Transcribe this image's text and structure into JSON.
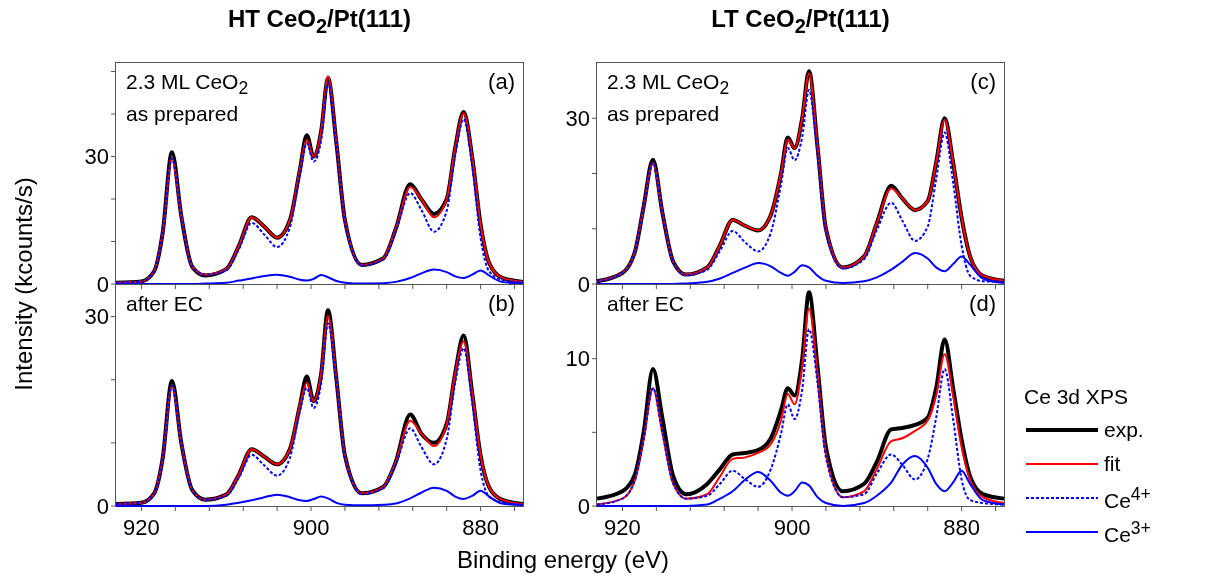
{
  "chart_data": [
    {
      "type": "line",
      "title": "HT CeO$_{2}$/Pt(111)",
      "ylabel": "Intensity (kcounts/s)",
      "annotations": [
        "2.3 ML CeO$_{2}$",
        "as prepared",
        "(a)"
      ],
      "marker": "none",
      "tick_labels": "y",
      "xlim": [
        923,
        875
      ],
      "xticks": [
        920,
        {
          "value": 916,
          "label": null
        },
        {
          "value": 912,
          "label": null
        },
        {
          "value": 908,
          "label": null
        },
        {
          "value": 904,
          "label": null
        },
        900,
        {
          "value": 896,
          "label": null
        },
        {
          "value": 892,
          "label": null
        },
        {
          "value": 888,
          "label": null
        },
        {
          "value": 884,
          "label": null
        },
        880,
        {
          "value": 876,
          "label": null
        }
      ],
      "ylim": [
        0,
        52
      ],
      "yticks": [
        0,
        {
          "value": 10,
          "label": null
        },
        {
          "value": 20,
          "label": null
        },
        30,
        {
          "value": 40,
          "label": null
        },
        {
          "value": 50,
          "label": null
        }
      ],
      "x": [
        923,
        920,
        918.5,
        917.5,
        916.4,
        915.3,
        914,
        912.5,
        910,
        908.5,
        907,
        905.5,
        904,
        902.5,
        901.3,
        900.5,
        899.7,
        898.8,
        898,
        897,
        896,
        894,
        891.5,
        890,
        888.3,
        887,
        885.5,
        884,
        883,
        882,
        881,
        880,
        879,
        877.5,
        875
      ],
      "series": [
        {
          "color": "#000000",
          "line_style": "solid",
          "values": [
            0.3,
            0.6,
            3,
            12,
            31,
            16,
            4,
            2.0,
            3.5,
            9,
            15.7,
            13.5,
            10.9,
            15,
            27,
            35,
            30,
            36,
            48.5,
            33,
            15,
            4.5,
            6,
            13,
            23.5,
            20,
            16.5,
            20,
            32,
            40.5,
            30,
            14,
            5,
            1.5,
            0.5
          ]
        },
        {
          "color": "#ff0000",
          "line_style": "solid",
          "values": [
            0.3,
            0.6,
            3,
            12,
            29.5,
            16,
            4,
            2.2,
            3.5,
            9,
            15.7,
            13.5,
            10.9,
            15,
            27,
            33.9,
            30,
            36,
            48.9,
            33,
            15,
            4.5,
            6,
            13,
            22.8,
            20,
            15.7,
            20,
            32,
            40.2,
            30,
            14,
            5,
            1.5,
            0.5
          ]
        },
        {
          "color": "#0000ff",
          "line_style": "dotted",
          "values": [
            0.3,
            0.6,
            3,
            12,
            29.5,
            16,
            4,
            2.2,
            3.2,
            8.2,
            14.4,
            11.6,
            8.7,
            13.3,
            26,
            33.1,
            28.8,
            33.9,
            47.3,
            32.3,
            14.7,
            4.4,
            5.8,
            12.5,
            21.4,
            17.5,
            12.3,
            17.2,
            30.2,
            38.8,
            27.8,
            10.8,
            3,
            1,
            0.4
          ]
        },
        {
          "color": "#0000ff",
          "line_style": "solid",
          "values": [
            0,
            0,
            0,
            0,
            0,
            0,
            0,
            0.1,
            0.3,
            0.8,
            1.3,
            1.9,
            2.2,
            1.7,
            1.0,
            0.8,
            1.2,
            2.1,
            1.6,
            0.7,
            0.3,
            0.1,
            0.2,
            0.5,
            1.4,
            2.5,
            3.4,
            2.8,
            1.8,
            1.4,
            2.2,
            3.2,
            2.0,
            0.5,
            0.1
          ]
        }
      ]
    },
    {
      "type": "line",
      "xlabel": "Binding energy (eV)",
      "annotations": [
        "after EC",
        "(b)"
      ],
      "marker": "none",
      "xlim": [
        923,
        875
      ],
      "xticks": [
        920,
        {
          "value": 916,
          "label": null
        },
        {
          "value": 912,
          "label": null
        },
        {
          "value": 908,
          "label": null
        },
        {
          "value": 904,
          "label": null
        },
        900,
        {
          "value": 896,
          "label": null
        },
        {
          "value": 892,
          "label": null
        },
        {
          "value": 888,
          "label": null
        },
        {
          "value": 884,
          "label": null
        },
        880,
        {
          "value": 876,
          "label": null
        }
      ],
      "ylim": [
        0,
        35
      ],
      "yticks": [
        0,
        {
          "value": 10,
          "label": null
        },
        {
          "value": 20,
          "label": null
        },
        30
      ],
      "x": [
        923,
        920,
        918.5,
        917.5,
        916.4,
        915.3,
        914,
        912.5,
        910,
        908.5,
        907,
        905.5,
        904,
        902.5,
        901.3,
        900.5,
        899.7,
        898.8,
        898,
        897,
        896,
        894,
        891.5,
        890,
        888.3,
        887,
        885.5,
        884,
        883,
        882,
        881,
        880,
        879,
        877.5,
        875
      ],
      "series": [
        {
          "color": "#000000",
          "line_style": "solid",
          "values": [
            0.3,
            0.5,
            2,
            7.5,
            19.8,
            10,
            2.5,
            1.0,
            1.8,
            5,
            9,
            7.8,
            6.6,
            9,
            16,
            20.5,
            16.6,
            21,
            31,
            20,
            8,
            2,
            3,
            7,
            14.5,
            11.5,
            10,
            13,
            21,
            27,
            18,
            8,
            3,
            1,
            0.3
          ]
        },
        {
          "color": "#ff0000",
          "line_style": "solid",
          "values": [
            0.3,
            0.5,
            2,
            7.5,
            19,
            10,
            2.5,
            1.0,
            1.8,
            5,
            9,
            7.8,
            6.6,
            9,
            16,
            19.5,
            16.6,
            21,
            30.1,
            20,
            8,
            2,
            3,
            7,
            13.5,
            11.5,
            9.5,
            13,
            21,
            26.1,
            18,
            8,
            3,
            1,
            0.3
          ]
        },
        {
          "color": "#0000ff",
          "line_style": "dotted",
          "values": [
            0.3,
            0.5,
            2,
            7.5,
            19,
            10,
            2.5,
            1.0,
            1.6,
            4.5,
            8.1,
            6.4,
            4.8,
            7.6,
            15.1,
            18.7,
            15.5,
            19.5,
            28.9,
            19.5,
            7.8,
            1.9,
            2.8,
            6.6,
            12.3,
            9.4,
            6.6,
            10.6,
            19.5,
            25,
            16.4,
            5.6,
            1.5,
            0.6,
            0.2
          ]
        },
        {
          "color": "#0000ff",
          "line_style": "solid",
          "values": [
            0,
            0,
            0,
            0,
            0,
            0,
            0,
            0,
            0.2,
            0.5,
            0.9,
            1.4,
            1.8,
            1.4,
            0.9,
            0.8,
            1.1,
            1.5,
            1.2,
            0.5,
            0.2,
            0.1,
            0.2,
            0.4,
            1.2,
            2.1,
            2.9,
            2.4,
            1.5,
            1.1,
            1.6,
            2.4,
            1.5,
            0.4,
            0.1
          ]
        }
      ]
    },
    {
      "type": "line",
      "title": "LT CeO$_{2}$/Pt(111)",
      "annotations": [
        "2.3 ML CeO$_{2}$",
        "as prepared",
        "(c)"
      ],
      "marker": "none",
      "tick_labels": "y",
      "xlim": [
        923,
        875
      ],
      "xticks": [
        920,
        {
          "value": 916,
          "label": null
        },
        {
          "value": 912,
          "label": null
        },
        {
          "value": 908,
          "label": null
        },
        {
          "value": 904,
          "label": null
        },
        900,
        {
          "value": 896,
          "label": null
        },
        {
          "value": 892,
          "label": null
        },
        {
          "value": 888,
          "label": null
        },
        {
          "value": 884,
          "label": null
        },
        880,
        {
          "value": 876,
          "label": null
        }
      ],
      "ylim": [
        0,
        40
      ],
      "yticks": [
        0,
        {
          "value": 10,
          "label": null
        },
        {
          "value": 20,
          "label": null
        },
        30
      ],
      "x": [
        923,
        920,
        918.5,
        917.5,
        916.4,
        915.3,
        914,
        912.5,
        910,
        908.5,
        907,
        905.5,
        904,
        902.5,
        901.3,
        900.5,
        899.7,
        898.8,
        898,
        897,
        896,
        894,
        891.5,
        890,
        888.3,
        887,
        885.5,
        884,
        883,
        882,
        881,
        880,
        879,
        877.5,
        875
      ],
      "series": [
        {
          "color": "#000000",
          "line_style": "solid",
          "values": [
            0.5,
            2,
            6,
            14,
            22.5,
            13,
            4,
            1.7,
            3,
            7,
            11.6,
            10.5,
            9.7,
            12.5,
            20,
            26.5,
            24.6,
            30,
            38.5,
            25,
            10,
            3,
            5,
            11,
            17.8,
            15.5,
            13.4,
            15,
            22,
            30,
            22,
            12,
            5,
            1.5,
            0.6
          ]
        },
        {
          "color": "#ff0000",
          "line_style": "solid",
          "values": [
            0.5,
            2,
            6,
            14,
            21.9,
            13,
            4,
            1.7,
            3,
            7,
            11.6,
            10.5,
            9.7,
            12.5,
            20,
            26.1,
            24.6,
            30,
            38.1,
            25,
            10,
            3,
            5,
            11,
            17.3,
            15.5,
            13.4,
            15,
            22,
            29.7,
            22,
            12,
            5,
            1.5,
            0.6
          ]
        },
        {
          "color": "#0000ff",
          "line_style": "dotted",
          "values": [
            0.5,
            2,
            6,
            14,
            21.9,
            13,
            4,
            1.6,
            2.6,
            6,
            9.6,
            7.5,
            5.9,
            9.3,
            18,
            24.6,
            22.4,
            26.6,
            35.1,
            23.5,
            9.4,
            2.8,
            4.5,
            9.8,
            14.7,
            11.5,
            7.8,
            10.4,
            19,
            27.4,
            18.4,
            7,
            1.5,
            0.5,
            0.4
          ]
        },
        {
          "color": "#0000ff",
          "line_style": "solid",
          "values": [
            0,
            0,
            0,
            0,
            0,
            0,
            0,
            0.1,
            0.4,
            1.0,
            2.0,
            3.0,
            3.8,
            3.2,
            2.0,
            1.5,
            2.2,
            3.4,
            3.0,
            1.5,
            0.6,
            0.2,
            0.5,
            1.2,
            2.6,
            4.0,
            5.6,
            4.6,
            3.0,
            2.3,
            3.6,
            5.0,
            3.5,
            1.0,
            0.2
          ]
        }
      ]
    },
    {
      "type": "line",
      "annotations": [
        "after EC",
        "(d)"
      ],
      "marker": "none",
      "legend": "right",
      "legend_title": "Ce 3d XPS",
      "xlim": [
        923,
        875
      ],
      "xticks": [
        920,
        {
          "value": 916,
          "label": null
        },
        {
          "value": 912,
          "label": null
        },
        {
          "value": 908,
          "label": null
        },
        {
          "value": 904,
          "label": null
        },
        900,
        {
          "value": 896,
          "label": null
        },
        {
          "value": 892,
          "label": null
        },
        {
          "value": 888,
          "label": null
        },
        {
          "value": 884,
          "label": null
        },
        880,
        {
          "value": 876,
          "label": null
        }
      ],
      "ylim": [
        0,
        15
      ],
      "yticks": [
        0,
        {
          "value": 5,
          "label": null
        },
        10
      ],
      "x": [
        923,
        920,
        918.5,
        917.5,
        916.4,
        915.3,
        914,
        912.5,
        910,
        908.5,
        907,
        905.5,
        904,
        902.5,
        901.3,
        900.5,
        899.7,
        898.8,
        898,
        897,
        896,
        894,
        891.5,
        890,
        888.3,
        887,
        885.5,
        884,
        883,
        882,
        881,
        880,
        879,
        877.5,
        875
      ],
      "series": [
        {
          "name": "exp.",
          "color": "#000000",
          "line_style": "solid",
          "values": [
            0.5,
            1.0,
            2.2,
            5,
            9.3,
            6,
            2.0,
            0.8,
            1.5,
            2.5,
            3.5,
            3.6,
            3.8,
            4.6,
            6.5,
            8,
            7.5,
            10,
            14.5,
            9.5,
            4,
            1.0,
            1.5,
            3,
            5.2,
            5.3,
            5.5,
            6,
            8,
            11.3,
            8,
            4.5,
            2,
            0.8,
            0.5
          ]
        },
        {
          "name": "fit",
          "color": "#ff0000",
          "line_style": "solid",
          "values": [
            0.1,
            0.5,
            1.8,
            4.5,
            8.0,
            5,
            1.5,
            0.5,
            0.8,
            2,
            3.2,
            3.3,
            3.6,
            4.2,
            5.8,
            7.6,
            6.9,
            9.5,
            13.4,
            9,
            3.5,
            0.6,
            1.0,
            2.5,
            4.4,
            4.6,
            5.1,
            5.8,
            7.5,
            10.3,
            7.5,
            4.0,
            1.8,
            0.6,
            0.2
          ]
        },
        {
          "name": "Ce$^{4+}$",
          "color": "#0000ff",
          "line_style": "dotted",
          "values": [
            0.1,
            0.5,
            1.8,
            4.5,
            8,
            5,
            1.5,
            0.5,
            0.7,
            1.5,
            2.4,
            1.8,
            1.3,
            2.5,
            4.9,
            6.9,
            5.9,
            7.9,
            12,
            8.4,
            3.3,
            0.6,
            0.8,
            2.2,
            3.5,
            2.8,
            1.8,
            3.2,
            6,
            9.3,
            5.9,
            1.8,
            0.4,
            0.2,
            0.1
          ]
        },
        {
          "name": "Ce$^{3+}$",
          "color": "#0000ff",
          "line_style": "solid",
          "values": [
            0,
            0,
            0,
            0,
            0,
            0,
            0,
            0,
            0.1,
            0.5,
            1.0,
            1.8,
            2.3,
            1.7,
            0.9,
            0.7,
            1.0,
            1.6,
            1.4,
            0.6,
            0.2,
            0,
            0.2,
            0.7,
            1.6,
            2.8,
            3.4,
            2.6,
            1.5,
            1.0,
            1.6,
            2.4,
            1.5,
            0.4,
            0.1
          ]
        }
      ]
    }
  ]
}
